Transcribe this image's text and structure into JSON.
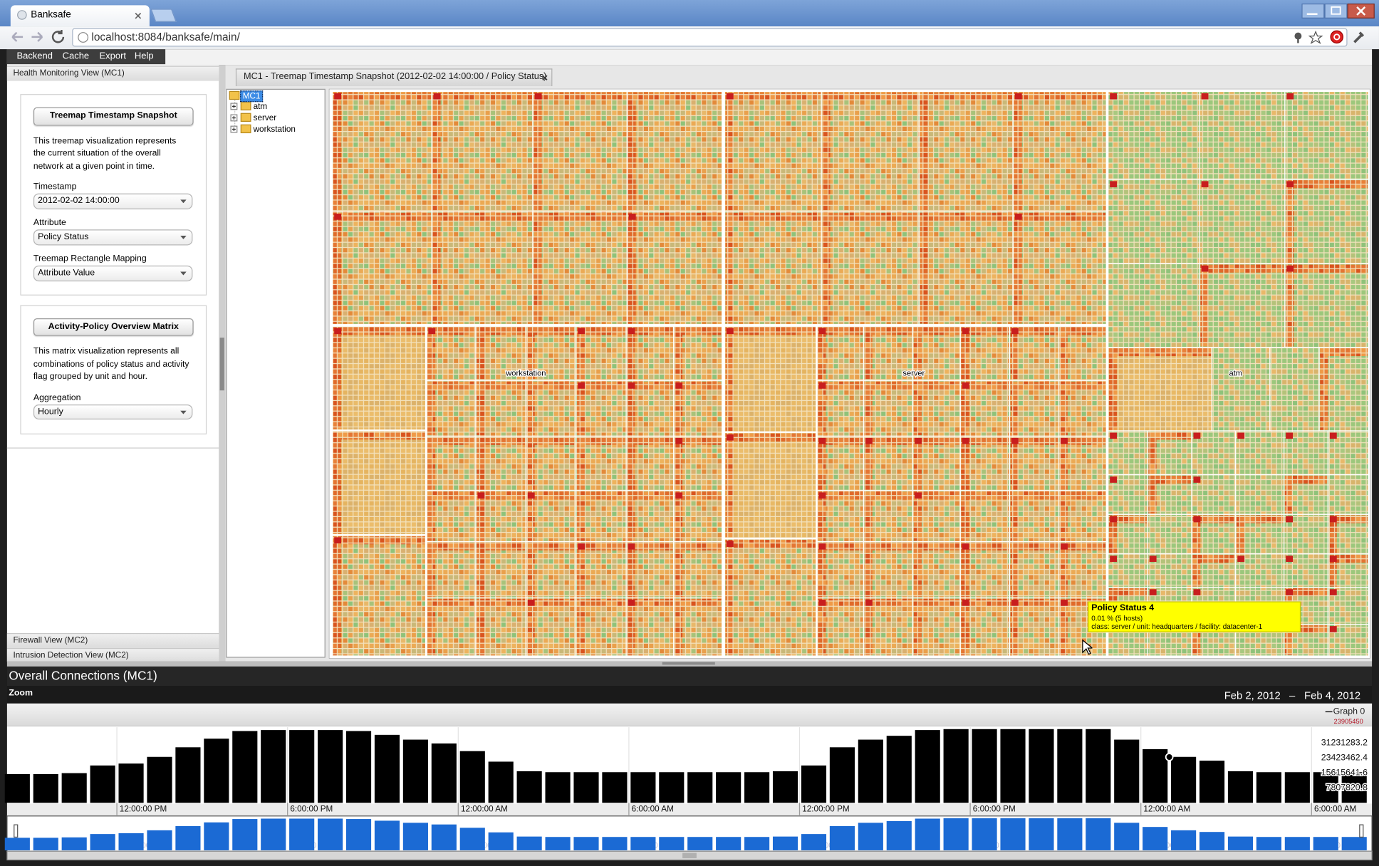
{
  "browser": {
    "tab_title": "Banksafe",
    "url": "localhost:8084/banksafe/main/"
  },
  "menu": [
    "Backend",
    "Cache",
    "Export",
    "Help"
  ],
  "left_panel": {
    "header": "Health Monitoring View (MC1)",
    "treemap_section": {
      "button": "Treemap Timestamp Snapshot",
      "description": [
        "This treemap visualization represents",
        "the current situation of the overall",
        "network at a given point in time."
      ],
      "fields": [
        {
          "label": "Timestamp",
          "value": "2012-02-02 14:00:00"
        },
        {
          "label": "Attribute",
          "value": "Policy Status"
        },
        {
          "label": "Treemap Rectangle Mapping",
          "value": "Attribute Value"
        }
      ]
    },
    "matrix_section": {
      "button": "Activity-Policy Overview Matrix",
      "description": [
        "This matrix visualization represents all",
        "combinations of policy status and activity",
        "flag grouped by unit and hour."
      ],
      "fields": [
        {
          "label": "Aggregation",
          "value": "Hourly"
        }
      ]
    },
    "other_views": [
      "Firewall View (MC2)",
      "Intrusion Detection View (MC2)"
    ]
  },
  "main_tab": "MC1 - Treemap Timestamp Snapshot (2012-02-02 14:00:00 / Policy Status)",
  "tree": {
    "root": "MC1",
    "children": [
      "atm",
      "server",
      "workstation"
    ]
  },
  "treemap": {
    "labels": [
      "workstation",
      "server",
      "atm"
    ],
    "tooltip": {
      "title": "Policy Status 4",
      "lines": [
        "0.01 % (5 hosts)",
        "class: server / unit: headquarters / facility: datacenter-1"
      ]
    }
  },
  "connections": {
    "title": "Overall Connections (MC1)",
    "zoom": "Zoom",
    "range": [
      "Feb 2, 2012",
      "–",
      "Feb 4, 2012"
    ]
  },
  "chart_data": {
    "type": "bar",
    "x": [
      8.5,
      9.5,
      10.5,
      11.5,
      12.5,
      13.5,
      14.5,
      15.5,
      16.5,
      17.5,
      18.5,
      19.5,
      20.5,
      21.5,
      22.5,
      23.5,
      24.5,
      25.5,
      26.5,
      27.5,
      28.5,
      29.5,
      30.5,
      31.5,
      32.5,
      33.5,
      34.5,
      35.5,
      36.5,
      37.5,
      38.5,
      39.5,
      40.5,
      41.5,
      42.5,
      43.5,
      44.5,
      45.5,
      46.5,
      47.5,
      48.5,
      49.5,
      50.5,
      51.5,
      52.5,
      53.5,
      54.5,
      55.5
    ],
    "series": [
      {
        "name": "Graph 0",
        "color": "#000000",
        "values": [
          15000000,
          15000000,
          15500000,
          19500000,
          20500000,
          24000000,
          29000000,
          33500000,
          37500000,
          38000000,
          38000000,
          38000000,
          37500000,
          35500000,
          33000000,
          31000000,
          27000000,
          21500000,
          16500000,
          16000000,
          16000000,
          16000000,
          16000000,
          16000000,
          16000000,
          16000000,
          16000000,
          16500000,
          19500000,
          29000000,
          33000000,
          35000000,
          38000000,
          38500000,
          38500000,
          38500000,
          38500000,
          38500000,
          38500000,
          33000000,
          28000000,
          24000000,
          22000000,
          16500000,
          16000000,
          16000000,
          16000000,
          16000000
        ]
      }
    ],
    "xlim": [
      8.2,
      56
    ],
    "xticks": [
      {
        "value": 12,
        "label": "12:00:00 PM"
      },
      {
        "value": 18,
        "label": "6:00:00 PM"
      },
      {
        "value": 24,
        "label": "12:00:00 AM"
      },
      {
        "value": 30,
        "label": "6:00:00 AM"
      },
      {
        "value": 36,
        "label": "12:00:00 PM"
      },
      {
        "value": 42,
        "label": "6:00:00 PM"
      },
      {
        "value": 48,
        "label": "12:00:00 AM"
      },
      {
        "value": 54,
        "label": "6:00:00 AM"
      }
    ],
    "ylim": [
      0,
      39039104
    ],
    "yticks": [
      7807820.8,
      15615641.6,
      23423462.4,
      31231283.2
    ],
    "grid": true,
    "hover_point": {
      "x": 49,
      "value": 23905450
    },
    "navigator_color": "#1b6ad4"
  }
}
